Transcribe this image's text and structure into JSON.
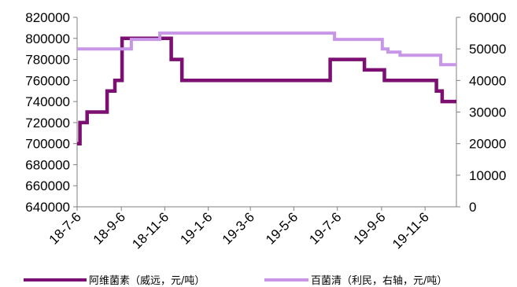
{
  "chart_data": {
    "type": "line",
    "title": "",
    "xlabel": "",
    "ylabel": "",
    "x_tick_labels": [
      "18-7-6",
      "18-9-6",
      "18-11-6",
      "19-1-6",
      "19-3-6",
      "19-5-6",
      "19-7-6",
      "19-9-6",
      "19-11-6"
    ],
    "x_range": [
      "2018-07-06",
      "2019-12-20"
    ],
    "left_axis": {
      "ylim": [
        640000,
        820000
      ],
      "ticks": [
        640000,
        660000,
        680000,
        700000,
        720000,
        740000,
        760000,
        780000,
        800000,
        820000
      ],
      "tick_labels": [
        "640000",
        "660000",
        "680000",
        "700000",
        "720000",
        "740000",
        "760000",
        "780000",
        "800000",
        "820000"
      ]
    },
    "right_axis": {
      "ylim": [
        0,
        60000
      ],
      "ticks": [
        0,
        10000,
        20000,
        30000,
        40000,
        50000,
        60000
      ],
      "tick_labels": [
        "0",
        "10000",
        "20000",
        "30000",
        "40000",
        "50000",
        "60000"
      ]
    },
    "grid": false,
    "legend_position": "bottom",
    "series": [
      {
        "name": "阿维菌素（威远，元/吨）",
        "axis": "left",
        "color": "#7b0f72",
        "step": true,
        "x": [
          "2018-07-06",
          "2018-07-10",
          "2018-07-20",
          "2018-08-17",
          "2018-08-28",
          "2018-09-07",
          "2018-11-15",
          "2018-11-30",
          "2019-06-26",
          "2019-08-13",
          "2019-09-10",
          "2019-11-22",
          "2019-11-30",
          "2019-12-20"
        ],
        "values": [
          700000,
          720000,
          730000,
          750000,
          760000,
          800000,
          780000,
          760000,
          780000,
          770000,
          760000,
          750000,
          740000,
          740000
        ]
      },
      {
        "name": "百菌清（利民，右轴，元/吨）",
        "axis": "right",
        "color": "#c896e6",
        "step": true,
        "x": [
          "2018-07-06",
          "2018-09-07",
          "2018-09-20",
          "2018-10-30",
          "2019-07-02",
          "2019-09-07",
          "2019-09-15",
          "2019-10-02",
          "2019-11-01",
          "2019-11-28",
          "2019-12-20"
        ],
        "values": [
          50000,
          50000,
          53000,
          55000,
          53000,
          50000,
          49000,
          48000,
          48000,
          45000,
          45000
        ]
      }
    ]
  }
}
